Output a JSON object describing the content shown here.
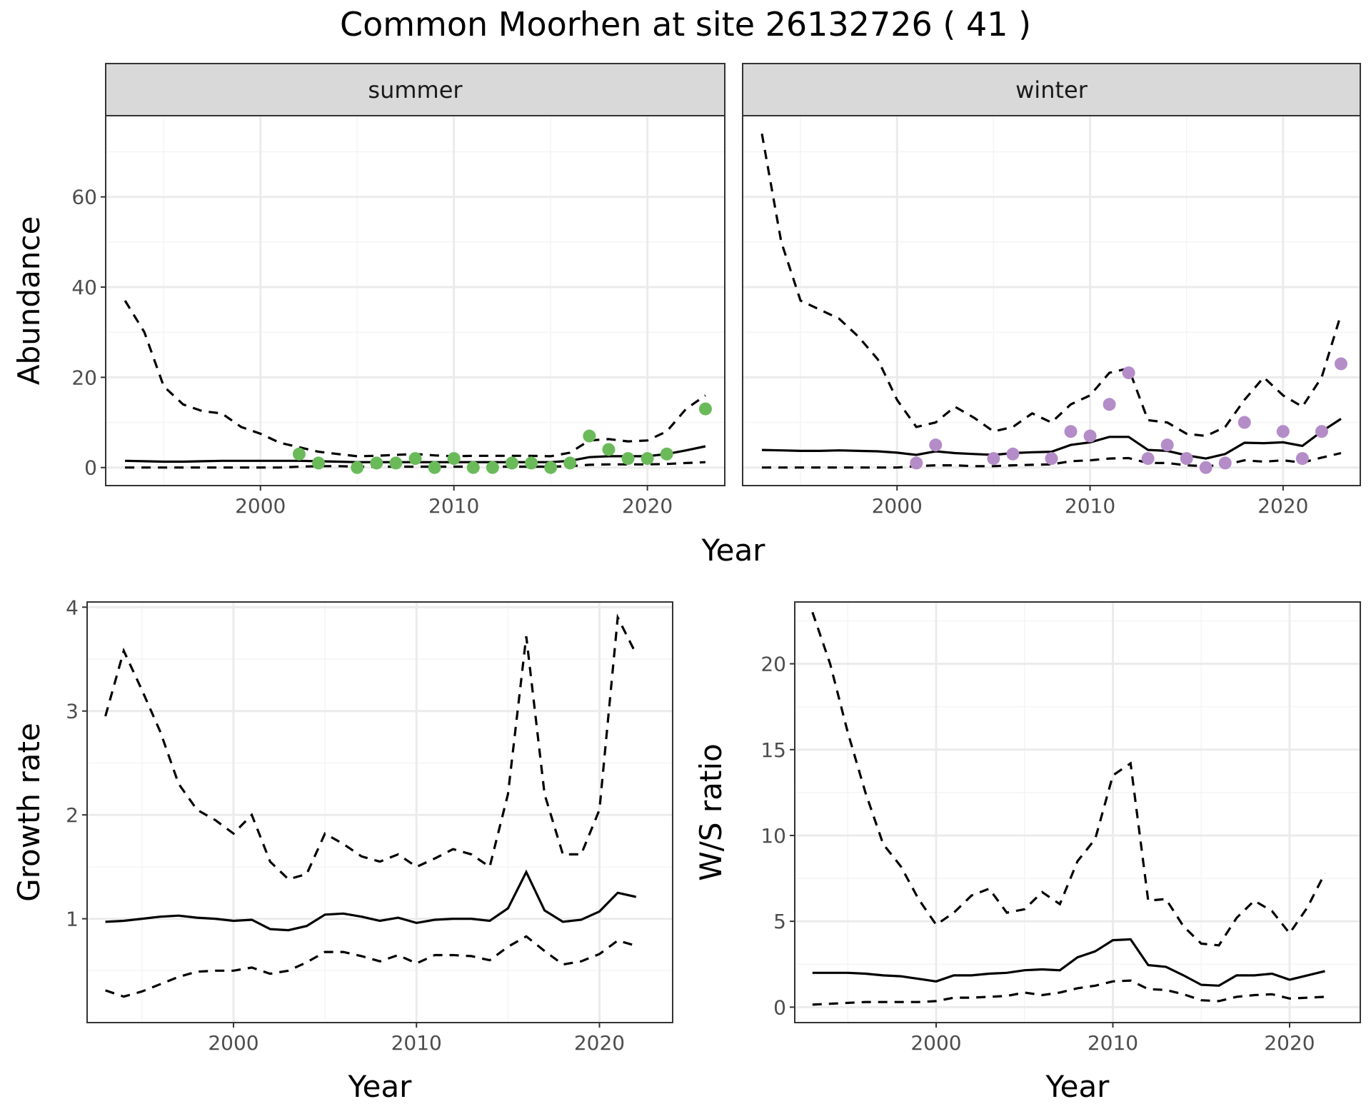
{
  "title": "Common Moorhen at site 26132726 ( 41 )",
  "colors": {
    "summer_points": "#6aba5a",
    "winter_points": "#b48cc8"
  },
  "chart_data": [
    {
      "id": "abundance",
      "type": "line",
      "ylabel": "Abundance",
      "xlabel": "Year",
      "xlim": [
        1992,
        2024
      ],
      "ylim": [
        -4,
        78
      ],
      "x_ticks": [
        2000,
        2010,
        2020
      ],
      "y_ticks": [
        0,
        20,
        40,
        60
      ],
      "grid": true,
      "facets": [
        {
          "label": "summer",
          "x": [
            1993,
            1994,
            1995,
            1996,
            1997,
            1998,
            1999,
            2000,
            2001,
            2002,
            2003,
            2004,
            2005,
            2006,
            2007,
            2008,
            2009,
            2010,
            2011,
            2012,
            2013,
            2014,
            2015,
            2016,
            2017,
            2018,
            2019,
            2020,
            2021,
            2022,
            2023
          ],
          "estimate": [
            1.5,
            1.4,
            1.3,
            1.3,
            1.4,
            1.5,
            1.5,
            1.5,
            1.5,
            1.5,
            1.4,
            1.3,
            1.2,
            1.2,
            1.2,
            1.2,
            1.2,
            1.2,
            1.2,
            1.2,
            1.2,
            1.2,
            1.2,
            1.5,
            2.3,
            2.5,
            2.5,
            2.5,
            3.0,
            3.8,
            4.7
          ],
          "upper": [
            37,
            30,
            18,
            14,
            12.5,
            12,
            9,
            7.5,
            5.5,
            4.5,
            3.5,
            3,
            2.5,
            2.6,
            2.8,
            3,
            2.7,
            2.5,
            2.6,
            2.6,
            2.6,
            2.6,
            2.5,
            3.3,
            6,
            6.3,
            5.8,
            6,
            8,
            13,
            16
          ],
          "lower": [
            0,
            0,
            0,
            0,
            0,
            0,
            0,
            0,
            0,
            0.2,
            0.3,
            0.3,
            0.2,
            0.2,
            0.2,
            0.2,
            0.2,
            0.2,
            0.2,
            0.2,
            0.2,
            0.2,
            0.2,
            0.3,
            0.6,
            0.7,
            0.7,
            0.7,
            0.8,
            1.0,
            1.2
          ],
          "observed_x": [
            2002,
            2003,
            2005,
            2006,
            2007,
            2008,
            2009,
            2010,
            2011,
            2012,
            2013,
            2014,
            2015,
            2016,
            2017,
            2018,
            2019,
            2020,
            2021,
            2023
          ],
          "observed": [
            3,
            1,
            0,
            1,
            1,
            2,
            0,
            2,
            0,
            0,
            1,
            1,
            0,
            1,
            7,
            4,
            2,
            2,
            3,
            13
          ]
        },
        {
          "label": "winter",
          "x": [
            1993,
            1994,
            1995,
            1996,
            1997,
            1998,
            1999,
            2000,
            2001,
            2002,
            2003,
            2004,
            2005,
            2006,
            2007,
            2008,
            2009,
            2010,
            2011,
            2012,
            2013,
            2014,
            2015,
            2016,
            2017,
            2018,
            2019,
            2020,
            2021,
            2022,
            2023
          ],
          "estimate": [
            3.9,
            3.8,
            3.7,
            3.7,
            3.8,
            3.7,
            3.6,
            3.3,
            2.8,
            3.6,
            3.2,
            3,
            2.8,
            3.2,
            3.4,
            3.5,
            5,
            5.6,
            6.8,
            6.8,
            3.9,
            3.7,
            2.7,
            2,
            3,
            5.5,
            5.4,
            5.6,
            4.8,
            8,
            10.8
          ],
          "upper": [
            74,
            50,
            37,
            35,
            33,
            29,
            24,
            15,
            9,
            10,
            13.5,
            11,
            8,
            9,
            12,
            10,
            14,
            16,
            21,
            22,
            10.5,
            10,
            7.5,
            7,
            9,
            15,
            20,
            16,
            13.5,
            20,
            34
          ],
          "lower": [
            0,
            0,
            0,
            0,
            0,
            0,
            0,
            0,
            0.3,
            0.5,
            0.5,
            0.3,
            0.3,
            0.5,
            0.6,
            0.7,
            1.4,
            1.6,
            2,
            2.1,
            1,
            1,
            0.5,
            0.3,
            0.6,
            1.6,
            1.3,
            1.6,
            1.1,
            2.2,
            3.2
          ],
          "observed_x": [
            2001,
            2002,
            2005,
            2006,
            2008,
            2009,
            2010,
            2011,
            2012,
            2013,
            2014,
            2015,
            2016,
            2017,
            2018,
            2020,
            2021,
            2022,
            2023
          ],
          "observed": [
            1,
            5,
            2,
            3,
            2,
            8,
            7,
            14,
            21,
            2,
            5,
            2,
            0,
            1,
            10,
            8,
            2,
            8,
            23
          ]
        }
      ]
    },
    {
      "id": "growth",
      "type": "line",
      "ylabel": "Growth rate",
      "xlabel": "Year",
      "xlim": [
        1992,
        2024
      ],
      "ylim": [
        0.0,
        4.05
      ],
      "x_ticks": [
        2000,
        2010,
        2020
      ],
      "y_ticks": [
        1,
        2,
        3,
        4
      ],
      "grid": true,
      "x": [
        1993,
        1994,
        1995,
        1996,
        1997,
        1998,
        1999,
        2000,
        2001,
        2002,
        2003,
        2004,
        2005,
        2006,
        2007,
        2008,
        2009,
        2010,
        2011,
        2012,
        2013,
        2014,
        2015,
        2016,
        2017,
        2018,
        2019,
        2020,
        2021,
        2022
      ],
      "estimate": [
        0.97,
        0.98,
        1.0,
        1.02,
        1.03,
        1.01,
        1.0,
        0.98,
        0.99,
        0.9,
        0.89,
        0.93,
        1.04,
        1.05,
        1.02,
        0.98,
        1.01,
        0.96,
        0.99,
        1.0,
        1.0,
        0.98,
        1.1,
        1.45,
        1.08,
        0.97,
        0.99,
        1.07,
        1.25,
        1.21
      ],
      "upper": [
        2.95,
        3.58,
        3.2,
        2.8,
        2.3,
        2.05,
        1.95,
        1.82,
        2.0,
        1.55,
        1.38,
        1.43,
        1.82,
        1.72,
        1.6,
        1.55,
        1.62,
        1.5,
        1.58,
        1.67,
        1.62,
        1.5,
        2.2,
        3.72,
        2.2,
        1.62,
        1.62,
        2.05,
        3.9,
        3.55
      ],
      "lower": [
        0.31,
        0.25,
        0.3,
        0.37,
        0.44,
        0.49,
        0.5,
        0.5,
        0.53,
        0.47,
        0.5,
        0.58,
        0.68,
        0.68,
        0.64,
        0.59,
        0.65,
        0.57,
        0.65,
        0.65,
        0.64,
        0.6,
        0.73,
        0.83,
        0.69,
        0.56,
        0.59,
        0.66,
        0.79,
        0.74
      ]
    },
    {
      "id": "ws_ratio",
      "type": "line",
      "ylabel": "W/S ratio",
      "xlabel": "Year",
      "xlim": [
        1992,
        2024
      ],
      "ylim": [
        -0.9,
        23.6
      ],
      "x_ticks": [
        2000,
        2010,
        2020
      ],
      "y_ticks": [
        0,
        5,
        10,
        15,
        20
      ],
      "grid": true,
      "x": [
        1993,
        1994,
        1995,
        1996,
        1997,
        1998,
        1999,
        2000,
        2001,
        2002,
        2003,
        2004,
        2005,
        2006,
        2007,
        2008,
        2009,
        2010,
        2011,
        2012,
        2013,
        2014,
        2015,
        2016,
        2017,
        2018,
        2019,
        2020,
        2021,
        2022
      ],
      "estimate": [
        2.0,
        2.0,
        2.0,
        1.95,
        1.85,
        1.8,
        1.65,
        1.5,
        1.85,
        1.85,
        1.95,
        2.0,
        2.15,
        2.2,
        2.15,
        2.9,
        3.25,
        3.9,
        3.95,
        2.45,
        2.35,
        1.85,
        1.3,
        1.25,
        1.85,
        1.85,
        1.95,
        1.6,
        1.85,
        2.1
      ],
      "upper": [
        23,
        20,
        16,
        12.5,
        9.5,
        8.2,
        6.3,
        4.8,
        5.5,
        6.5,
        6.9,
        5.5,
        5.7,
        6.7,
        6,
        8.5,
        9.8,
        13.5,
        14.2,
        6.2,
        6.3,
        4.7,
        3.7,
        3.6,
        5.2,
        6.2,
        5.6,
        4.3,
        5.8,
        7.8
      ],
      "lower": [
        0.15,
        0.2,
        0.25,
        0.3,
        0.3,
        0.3,
        0.3,
        0.35,
        0.55,
        0.55,
        0.6,
        0.65,
        0.85,
        0.7,
        0.85,
        1.1,
        1.25,
        1.5,
        1.55,
        1.05,
        1.0,
        0.75,
        0.4,
        0.35,
        0.6,
        0.7,
        0.75,
        0.5,
        0.55,
        0.6
      ]
    }
  ]
}
